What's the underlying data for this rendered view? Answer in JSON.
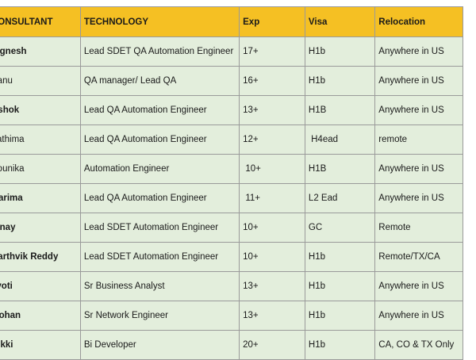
{
  "table": {
    "headers": [
      "CONSULTANT",
      "TECHNOLOGY",
      "Exp",
      "Visa",
      "Relocation"
    ],
    "rows": [
      [
        "Vignesh",
        "Lead SDET QA Automation Engineer",
        "17+",
        "H1b",
        "Anywhere in US"
      ],
      [
        "Banu",
        "QA manager/ Lead QA",
        "16+",
        "H1b",
        "Anywhere in US"
      ],
      [
        "Ashok",
        "Lead QA Automation Engineer",
        "13+",
        "H1B",
        "Anywhere in US"
      ],
      [
        "Fathima",
        "Lead QA Automation Engineer",
        "12+",
        " H4ead",
        "remote"
      ],
      [
        "Sounika",
        "Automation Engineer",
        " 10+",
        "H1B",
        "Anywhere in US"
      ],
      [
        "Garima",
        "Lead QA Automation Engineer",
        " 11+",
        "L2 Ead",
        "Anywhere in US"
      ],
      [
        "Vinay",
        "Lead SDET Automation Engineer",
        "10+",
        "GC",
        "Remote"
      ],
      [
        "Karthvik Reddy",
        "Lead SDET Automation Engineer",
        "10+",
        "H1b",
        "Remote/TX/CA"
      ],
      [
        "Jyoti",
        "Sr Business Analyst",
        "13+",
        "H1b",
        "Anywhere in US"
      ],
      [
        "Mohan",
        "Sr Network Engineer",
        "13+",
        "H1b",
        "Anywhere in US"
      ],
      [
        "Nikki",
        "Bi Developer",
        "20+",
        "H1b",
        "CA, CO & TX Only"
      ]
    ]
  }
}
